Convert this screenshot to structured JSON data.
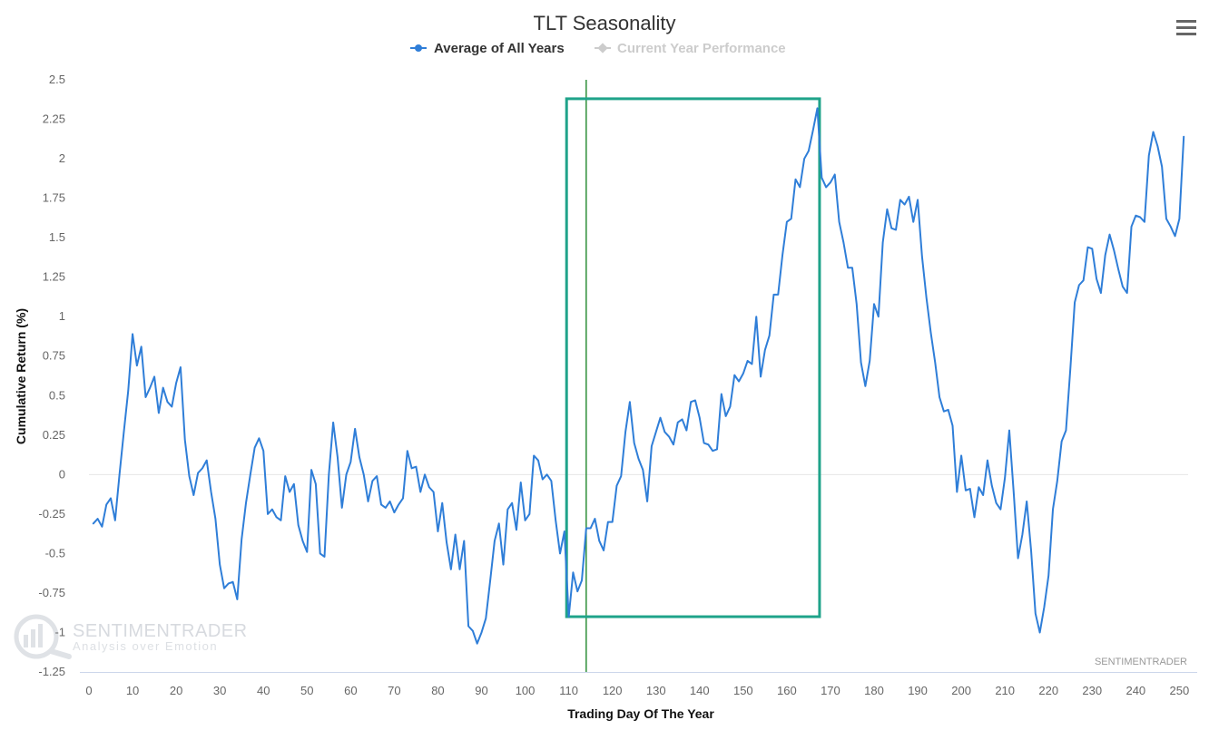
{
  "chart_data": {
    "type": "line",
    "title": "TLT Seasonality",
    "xlabel": "Trading Day Of The Year",
    "ylabel": "Cumulative Return (%)",
    "xlim": [
      0,
      252
    ],
    "ylim": [
      -1.25,
      2.5
    ],
    "x_ticks": [
      0,
      10,
      20,
      30,
      40,
      50,
      60,
      70,
      80,
      90,
      100,
      110,
      120,
      130,
      140,
      150,
      160,
      170,
      180,
      190,
      200,
      210,
      220,
      230,
      240,
      250
    ],
    "y_ticks": [
      {
        "value": 2.5,
        "label": "2.5"
      },
      {
        "value": 2.25,
        "label": "2.25"
      },
      {
        "value": 2,
        "label": "2"
      },
      {
        "value": 1.75,
        "label": "1.75"
      },
      {
        "value": 1.5,
        "label": "1.5"
      },
      {
        "value": 1.25,
        "label": "1.25"
      },
      {
        "value": 1,
        "label": "1"
      },
      {
        "value": 0.75,
        "label": "0.75"
      },
      {
        "value": 0.5,
        "label": "0.5"
      },
      {
        "value": 0.25,
        "label": "0.25"
      },
      {
        "value": 0,
        "label": "0"
      },
      {
        "value": -0.25,
        "label": "-0.25"
      },
      {
        "value": -0.5,
        "label": "-0.5"
      },
      {
        "value": -0.75,
        "label": "-0.75"
      },
      {
        "value": -1,
        "label": "-1"
      },
      {
        "value": -1.25,
        "label": "-1.25"
      }
    ],
    "legend_position": "top-center",
    "series": [
      {
        "name": "Average of All Years",
        "color": "#2f7ed8",
        "visible": true,
        "x_start": 1,
        "values": [
          -0.31,
          -0.28,
          -0.33,
          -0.19,
          -0.15,
          -0.29,
          0.0,
          0.27,
          0.53,
          0.89,
          0.69,
          0.81,
          0.49,
          0.55,
          0.62,
          0.39,
          0.55,
          0.46,
          0.43,
          0.58,
          0.68,
          0.22,
          -0.01,
          -0.13,
          0.01,
          0.04,
          0.09,
          -0.11,
          -0.28,
          -0.57,
          -0.72,
          -0.69,
          -0.68,
          -0.79,
          -0.41,
          -0.18,
          0.0,
          0.17,
          0.23,
          0.15,
          -0.25,
          -0.22,
          -0.27,
          -0.29,
          -0.01,
          -0.11,
          -0.06,
          -0.32,
          -0.42,
          -0.49,
          0.03,
          -0.06,
          -0.5,
          -0.52,
          0.0,
          0.33,
          0.11,
          -0.21,
          0.0,
          0.08,
          0.29,
          0.11,
          0.0,
          -0.17,
          -0.04,
          -0.01,
          -0.19,
          -0.21,
          -0.17,
          -0.24,
          -0.19,
          -0.15,
          0.15,
          0.04,
          0.05,
          -0.11,
          0.0,
          -0.08,
          -0.11,
          -0.36,
          -0.18,
          -0.43,
          -0.6,
          -0.38,
          -0.6,
          -0.42,
          -0.96,
          -0.99,
          -1.07,
          -1.0,
          -0.91,
          -0.67,
          -0.42,
          -0.31,
          -0.57,
          -0.22,
          -0.18,
          -0.35,
          -0.05,
          -0.29,
          -0.25,
          0.12,
          0.09,
          -0.03,
          0.0,
          -0.04,
          -0.29,
          -0.5,
          -0.36,
          -0.9,
          -0.62,
          -0.74,
          -0.67,
          -0.34,
          -0.34,
          -0.28,
          -0.42,
          -0.48,
          -0.3,
          -0.3,
          -0.07,
          -0.01,
          0.27,
          0.46,
          0.2,
          0.1,
          0.03,
          -0.17,
          0.18,
          0.27,
          0.36,
          0.27,
          0.24,
          0.19,
          0.33,
          0.35,
          0.28,
          0.46,
          0.47,
          0.36,
          0.2,
          0.19,
          0.15,
          0.16,
          0.51,
          0.37,
          0.43,
          0.63,
          0.59,
          0.64,
          0.72,
          0.7,
          1.0,
          0.62,
          0.79,
          0.88,
          1.14,
          1.14,
          1.39,
          1.6,
          1.62,
          1.87,
          1.82,
          2.0,
          2.05,
          2.18,
          2.32,
          1.88,
          1.82,
          1.85,
          1.9,
          1.6,
          1.47,
          1.31,
          1.31,
          1.08,
          0.71,
          0.56,
          0.72,
          1.08,
          1.0,
          1.47,
          1.68,
          1.56,
          1.55,
          1.74,
          1.71,
          1.76,
          1.6,
          1.74,
          1.38,
          1.12,
          0.9,
          0.71,
          0.49,
          0.4,
          0.41,
          0.31,
          -0.11,
          0.12,
          -0.1,
          -0.09,
          -0.27,
          -0.08,
          -0.13,
          0.09,
          -0.07,
          -0.18,
          -0.22,
          -0.02,
          0.28,
          -0.11,
          -0.53,
          -0.38,
          -0.17,
          -0.48,
          -0.88,
          -1.0,
          -0.84,
          -0.64,
          -0.22,
          -0.04,
          0.21,
          0.28,
          0.67,
          1.09,
          1.2,
          1.23,
          1.44,
          1.43,
          1.24,
          1.15,
          1.39,
          1.52,
          1.42,
          1.3,
          1.19,
          1.15,
          1.57,
          1.64,
          1.63,
          1.6,
          2.02,
          2.17,
          2.08,
          1.95,
          1.62,
          1.57,
          1.51,
          1.62,
          2.14
        ]
      },
      {
        "name": "Current Year Performance",
        "color": "#cccccc",
        "visible": false,
        "values": []
      }
    ],
    "annotations": {
      "vertical_line": {
        "x": 114,
        "color": "#2f8f3a"
      },
      "highlight_box": {
        "x_start": 109.5,
        "x_end": 167.5,
        "y_low": -0.9,
        "y_high": 2.38,
        "color": "#1fa38a"
      }
    }
  },
  "watermark": {
    "brand": "SENTIMENTRADER",
    "tagline": "Analysis over Emotion"
  },
  "credit": "SENTIMENTRADER",
  "menu_icon": "hamburger-menu-icon"
}
